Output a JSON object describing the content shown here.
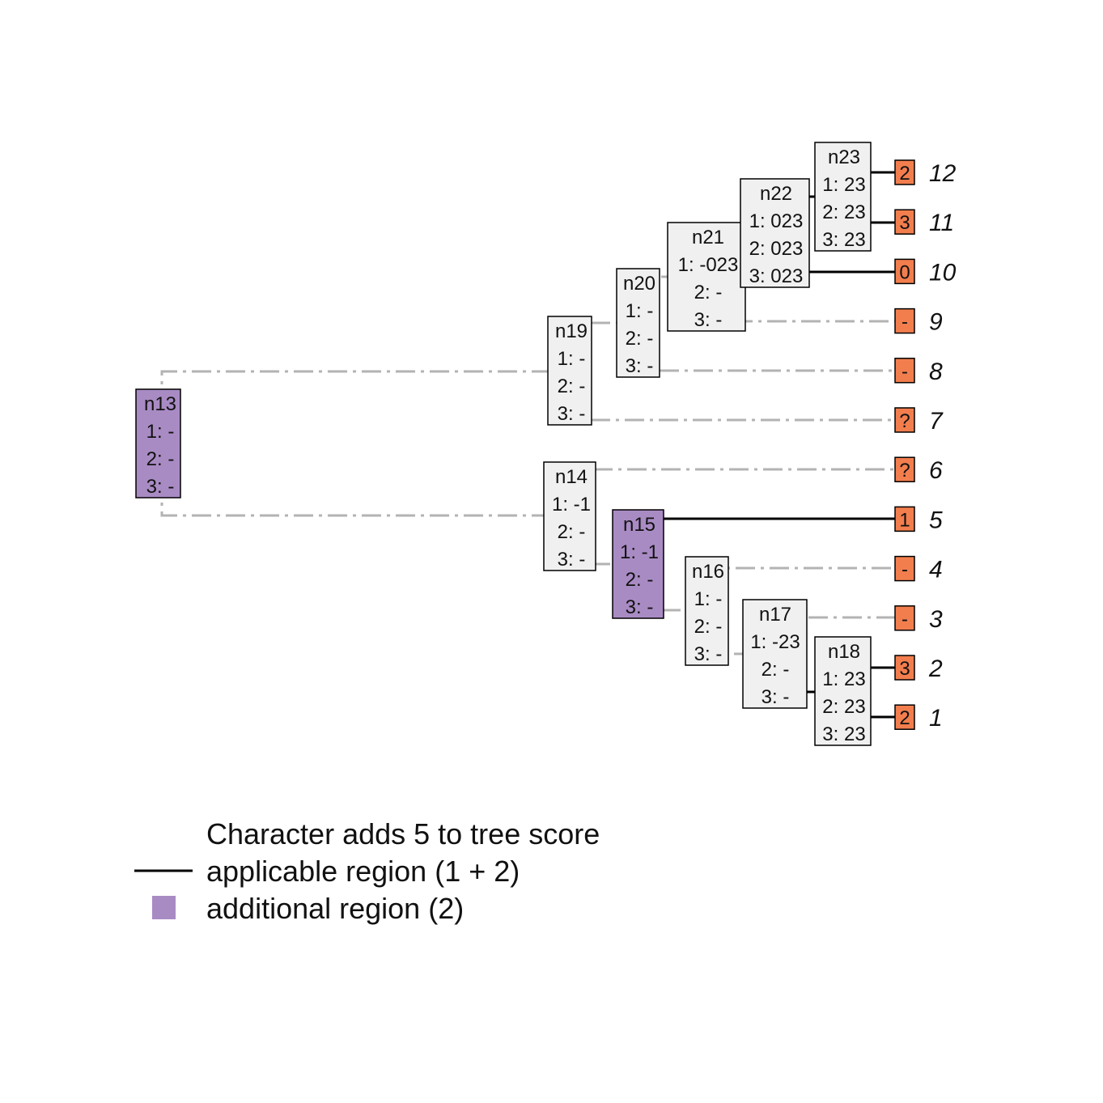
{
  "colors": {
    "node_fill": "#f0f0f0",
    "node_highlight": "#a98bc4",
    "tip_fill": "#f27e4e",
    "applicable_line": "#000000",
    "inapplicable_line": "#b3b3b3",
    "box_stroke": "#000000"
  },
  "nodes": {
    "n13": {
      "label": "n13",
      "s1": "1: -",
      "s2": "2: -",
      "s3": "3: -"
    },
    "n14": {
      "label": "n14",
      "s1": "1: -1",
      "s2": "2: -",
      "s3": "3: -"
    },
    "n15": {
      "label": "n15",
      "s1": "1: -1",
      "s2": "2: -",
      "s3": "3: -"
    },
    "n16": {
      "label": "n16",
      "s1": "1: -",
      "s2": "2: -",
      "s3": "3: -"
    },
    "n17": {
      "label": "n17",
      "s1": "1: -23",
      "s2": "2: -",
      "s3": "3: -"
    },
    "n18": {
      "label": "n18",
      "s1": "1: 23",
      "s2": "2: 23",
      "s3": "3: 23"
    },
    "n19": {
      "label": "n19",
      "s1": "1: -",
      "s2": "2: -",
      "s3": "3: -"
    },
    "n20": {
      "label": "n20",
      "s1": "1: -",
      "s2": "2: -",
      "s3": "3: -"
    },
    "n21": {
      "label": "n21",
      "s1": "1: -023",
      "s2": "2: -",
      "s3": "3: -"
    },
    "n22": {
      "label": "n22",
      "s1": "1: 023",
      "s2": "2: 023",
      "s3": "3: 023"
    },
    "n23": {
      "label": "n23",
      "s1": "1: 23",
      "s2": "2: 23",
      "s3": "3: 23"
    }
  },
  "tips": [
    {
      "label": "12",
      "state": "2"
    },
    {
      "label": "11",
      "state": "3"
    },
    {
      "label": "10",
      "state": "0"
    },
    {
      "label": "9",
      "state": "-"
    },
    {
      "label": "8",
      "state": "-"
    },
    {
      "label": "7",
      "state": "?"
    },
    {
      "label": "6",
      "state": "?"
    },
    {
      "label": "5",
      "state": "1"
    },
    {
      "label": "4",
      "state": "-"
    },
    {
      "label": "3",
      "state": "-"
    },
    {
      "label": "2",
      "state": "3"
    },
    {
      "label": "1",
      "state": "2"
    }
  ],
  "legend": {
    "title": "Character adds 5 to tree score",
    "applicable": "applicable region (1 + 2)",
    "additional": "additional region (2)"
  }
}
